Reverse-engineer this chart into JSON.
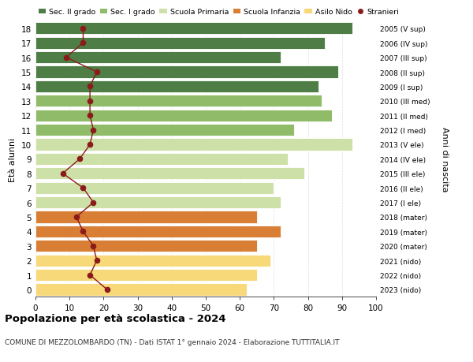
{
  "ages": [
    0,
    1,
    2,
    3,
    4,
    5,
    6,
    7,
    8,
    9,
    10,
    11,
    12,
    13,
    14,
    15,
    16,
    17,
    18
  ],
  "bar_values": [
    62,
    65,
    69,
    65,
    72,
    65,
    72,
    70,
    79,
    74,
    93,
    76,
    87,
    84,
    83,
    89,
    72,
    85,
    93
  ],
  "stranieri": [
    21,
    16,
    18,
    17,
    14,
    12,
    17,
    14,
    8,
    13,
    16,
    17,
    16,
    16,
    16,
    18,
    9,
    14,
    14
  ],
  "right_labels": [
    "2023 (nido)",
    "2022 (nido)",
    "2021 (nido)",
    "2020 (mater)",
    "2019 (mater)",
    "2018 (mater)",
    "2017 (I ele)",
    "2016 (II ele)",
    "2015 (III ele)",
    "2014 (IV ele)",
    "2013 (V ele)",
    "2012 (I med)",
    "2011 (II med)",
    "2010 (III med)",
    "2009 (I sup)",
    "2008 (II sup)",
    "2007 (III sup)",
    "2006 (IV sup)",
    "2005 (V sup)"
  ],
  "bar_colors": [
    "#f7d97a",
    "#f7d97a",
    "#f7d97a",
    "#d97f35",
    "#d97f35",
    "#d97f35",
    "#cde0a8",
    "#cde0a8",
    "#cde0a8",
    "#cde0a8",
    "#cde0a8",
    "#90bc6a",
    "#90bc6a",
    "#90bc6a",
    "#4e7e45",
    "#4e7e45",
    "#4e7e45",
    "#4e7e45",
    "#4e7e45"
  ],
  "stranieri_color": "#8b1a1a",
  "title": "Popolazione per età scolastica - 2024",
  "subtitle": "COMUNE DI MEZZOLOMBARDO (TN) - Dati ISTAT 1° gennaio 2024 - Elaborazione TUTTITALIA.IT",
  "ylabel": "Età alunni",
  "right_ylabel": "Anni di nascita",
  "xlim": [
    0,
    100
  ],
  "xticks": [
    0,
    10,
    20,
    30,
    40,
    50,
    60,
    70,
    80,
    90,
    100
  ],
  "legend_labels": [
    "Sec. II grado",
    "Sec. I grado",
    "Scuola Primaria",
    "Scuola Infanzia",
    "Asilo Nido",
    "Stranieri"
  ],
  "legend_colors": [
    "#4e7e45",
    "#90bc6a",
    "#cde0a8",
    "#d97f35",
    "#f7d97a",
    "#8b1a1a"
  ],
  "bg_color": "#ffffff",
  "grid_color": "#dddddd"
}
